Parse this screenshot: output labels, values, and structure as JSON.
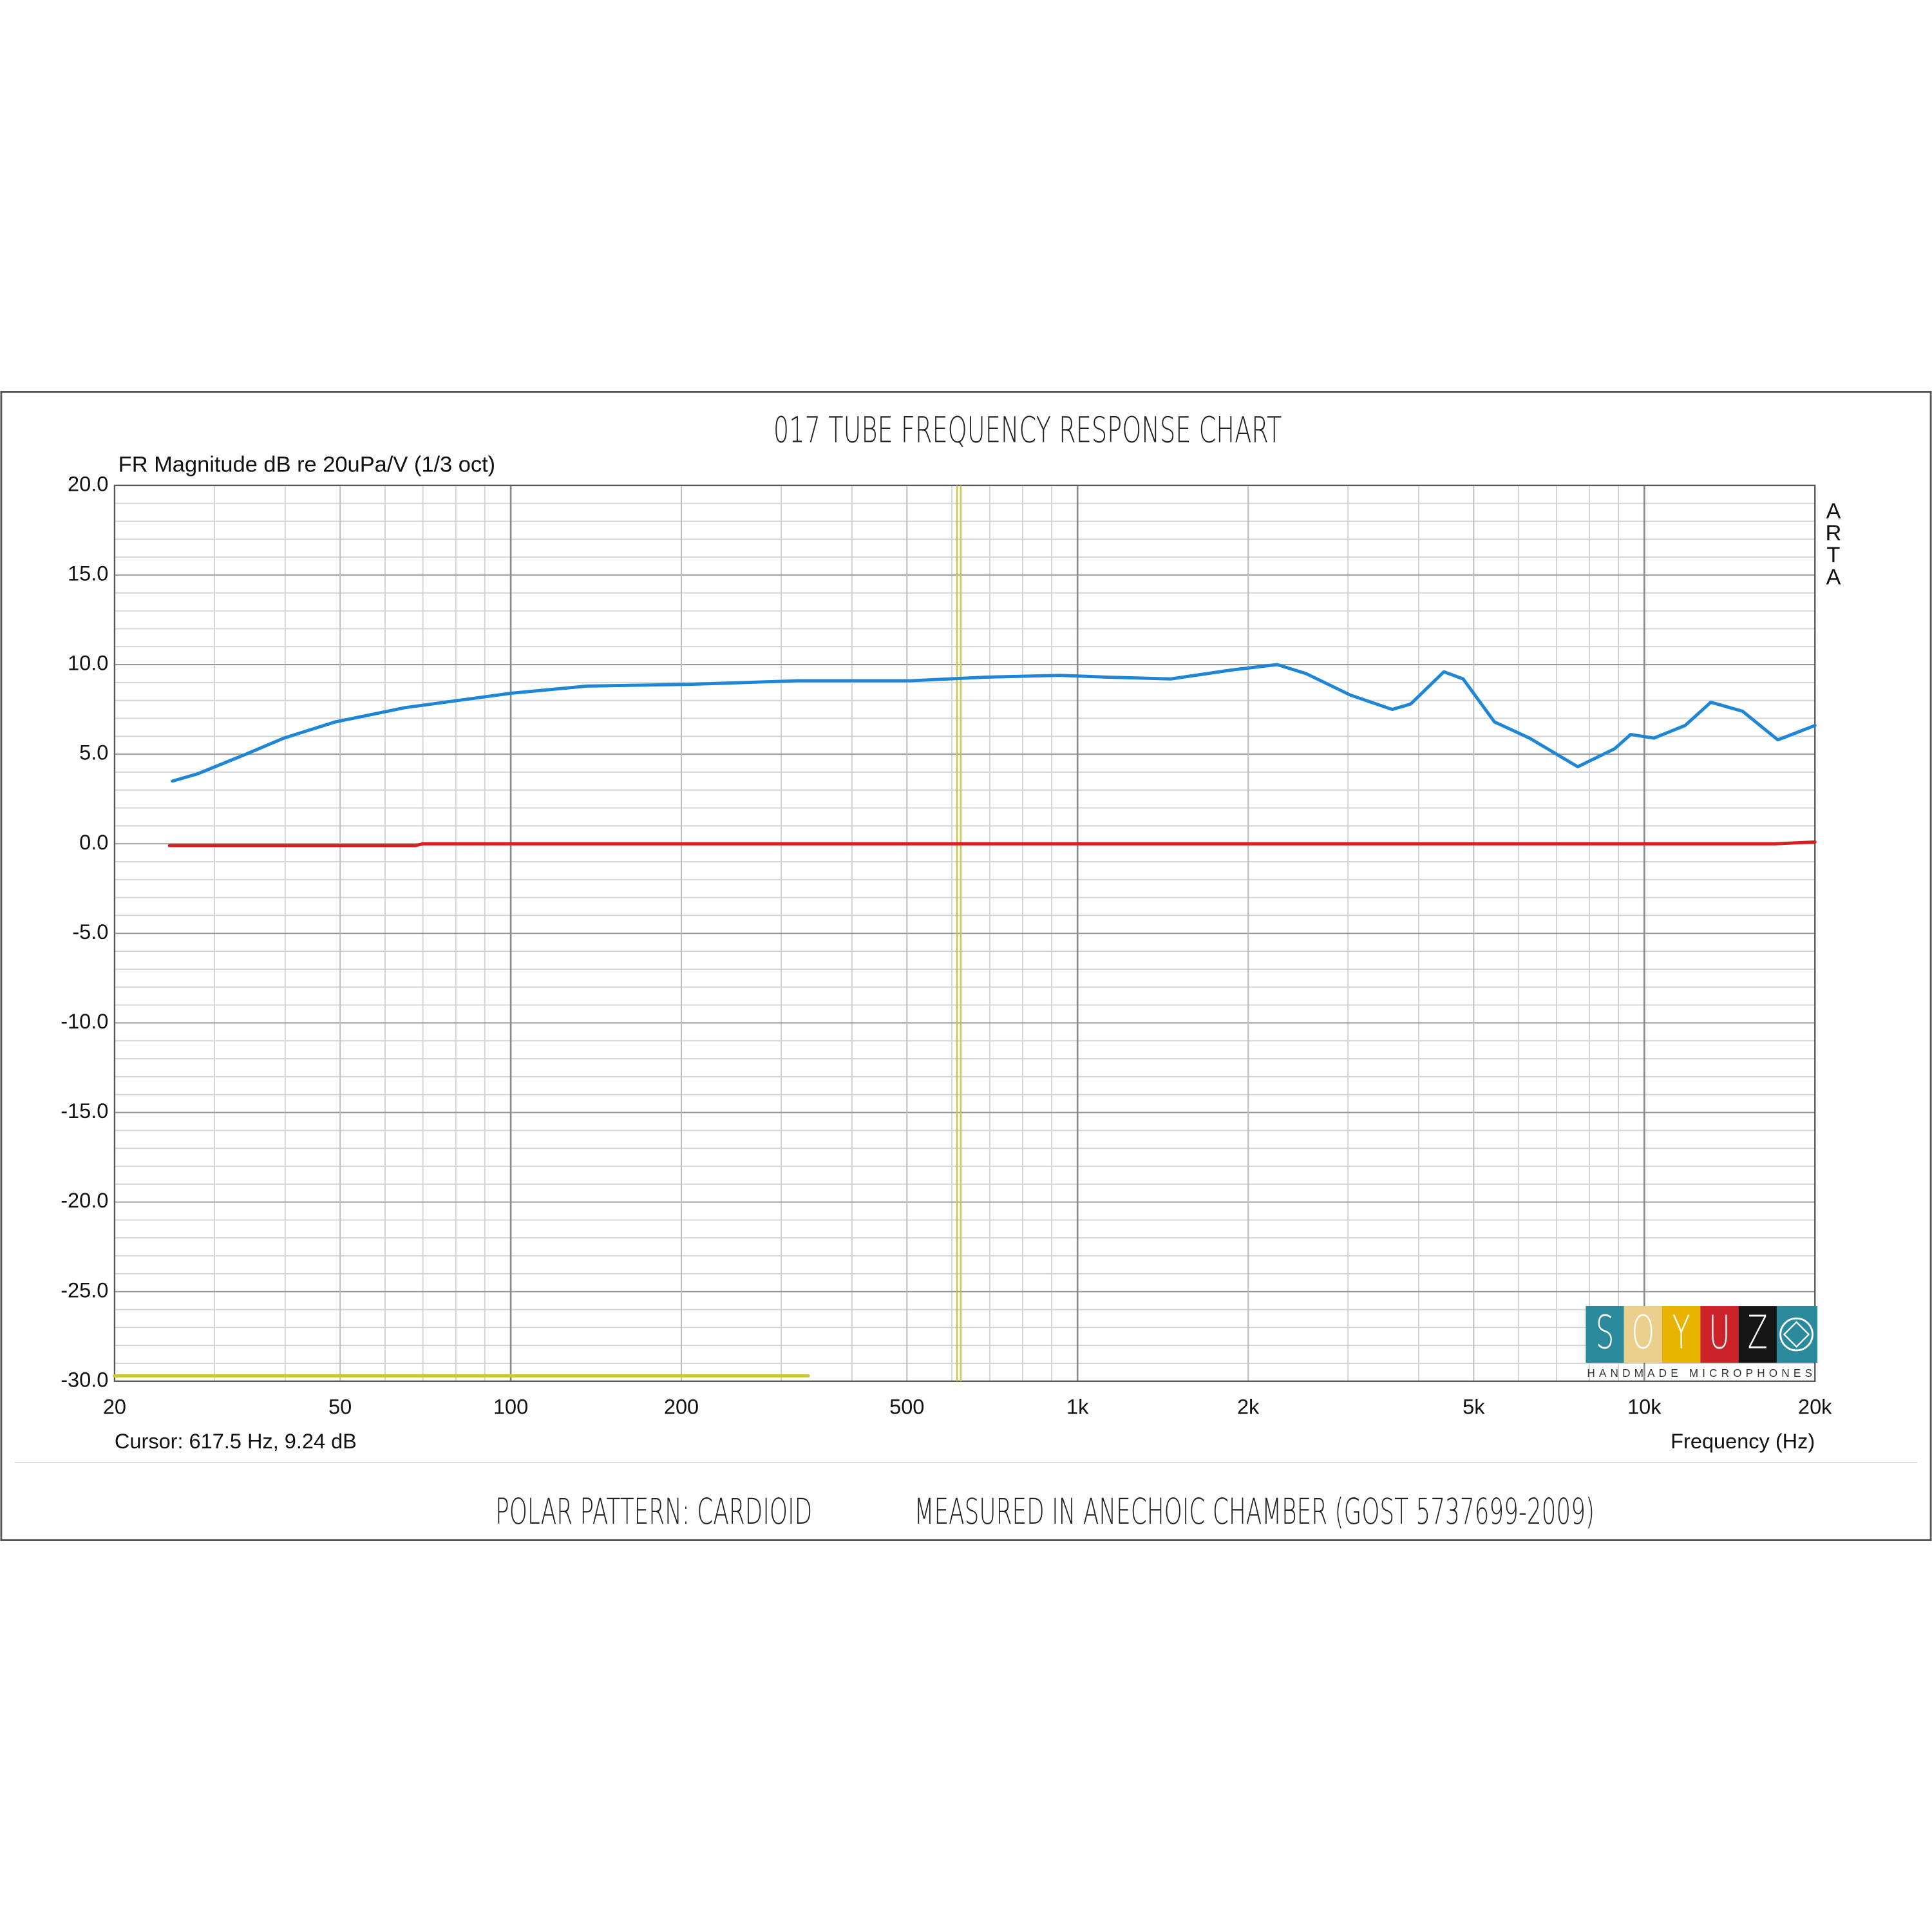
{
  "chart_data": {
    "type": "line",
    "title": "017 TUBE FREQUENCY RESPONSE CHART",
    "y_label": "FR Magnitude dB re 20uPa/V (1/3 oct)",
    "x_label": "Frequency (Hz)",
    "cursor_label": "Cursor: 617.5 Hz, 9.24 dB",
    "watermark": "ARTA",
    "xscale": "log",
    "grid": true,
    "xlim": [
      20,
      20000
    ],
    "ylim": [
      -30,
      20
    ],
    "xticks": [
      20,
      50,
      100,
      200,
      500,
      {
        "value": 1000,
        "label": "1k"
      },
      {
        "value": 2000,
        "label": "2k"
      },
      {
        "value": 5000,
        "label": "5k"
      },
      {
        "value": 10000,
        "label": "10k"
      },
      {
        "value": 20000,
        "label": "20k"
      }
    ],
    "xminorticks": [
      30,
      40,
      60,
      70,
      80,
      90,
      300,
      400,
      600,
      700,
      800,
      900,
      3000,
      4000,
      6000,
      7000,
      8000,
      9000
    ],
    "yticks": [
      {
        "value": 20,
        "label": "20.0"
      },
      {
        "value": 15,
        "label": "15.0"
      },
      {
        "value": 10,
        "label": "10.0"
      },
      {
        "value": 5,
        "label": "5.0"
      },
      {
        "value": 0,
        "label": "0.0"
      },
      {
        "value": -5,
        "label": "-5.0"
      },
      {
        "value": -10,
        "label": "-10.0"
      },
      {
        "value": -15,
        "label": "-15.0"
      },
      {
        "value": -20,
        "label": "-20.0"
      },
      {
        "value": -25,
        "label": "-25.0"
      },
      {
        "value": -30,
        "label": "-30.0"
      }
    ],
    "yminorticks": [
      -29,
      -28,
      -27,
      -26,
      -24,
      -23,
      -22,
      -21,
      -19,
      -18,
      -17,
      -16,
      -14,
      -13,
      -12,
      -11,
      -9,
      -8,
      -7,
      -6,
      -4,
      -3,
      -2,
      -1,
      1,
      2,
      3,
      4,
      6,
      7,
      8,
      9,
      11,
      12,
      13,
      14,
      16,
      17,
      18,
      19
    ],
    "cursor_x": 617.5,
    "cursor_color": "#c8c83a",
    "series": [
      {
        "color": "#1f86d6",
        "x": [
          25.3,
          28,
          34.1,
          39.8,
          49,
          65.1,
          100,
          136,
          207,
          322,
          508,
          688,
          931,
          1130,
          1460,
          1870,
          2250,
          2530,
          3030,
          3590,
          3870,
          4430,
          4790,
          5440,
          6270,
          7630,
          8860,
          9460,
          10400,
          11800,
          13100,
          14900,
          17200,
          20000
        ],
        "values": [
          3.5,
          3.9,
          5.0,
          5.9,
          6.8,
          7.6,
          8.4,
          8.8,
          8.9,
          9.1,
          9.1,
          9.3,
          9.4,
          9.3,
          9.2,
          9.7,
          10.0,
          9.5,
          8.3,
          7.5,
          7.8,
          9.6,
          9.2,
          6.8,
          5.9,
          4.3,
          5.3,
          6.1,
          5.9,
          6.6,
          7.9,
          7.4,
          5.8,
          6.6
        ]
      },
      {
        "color": "#d42020",
        "x": [
          25,
          68,
          70,
          17000,
          20000
        ],
        "values": [
          -0.1,
          -0.1,
          0,
          0,
          0.1
        ]
      },
      {
        "color": "#c8c83a",
        "x": [
          20,
          335
        ],
        "values": [
          -29.7,
          -29.7
        ]
      }
    ]
  },
  "footer": {
    "left": "POLAR PATTERN: CARDIOID",
    "right": "MEASURED IN ANECHOIC CHAMBER (GOST 5737699-2009)"
  },
  "logo": {
    "letters": [
      "S",
      "O",
      "Y",
      "U",
      "Z"
    ],
    "tagline": "HANDMADE MICROPHONES"
  }
}
